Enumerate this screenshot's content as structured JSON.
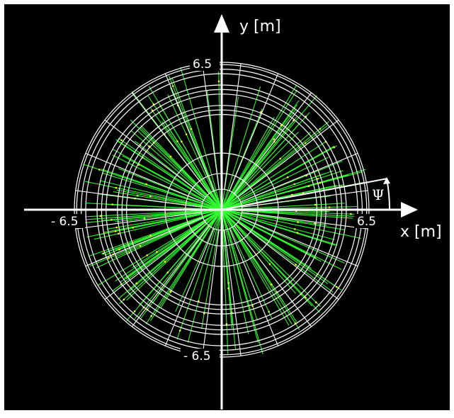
{
  "figure": {
    "x_axis_label": "x [m]",
    "y_axis_label": "y [m]",
    "angle_label": "Ψ",
    "tick_labels": {
      "x_negative": "- 6.5",
      "x_positive": "6.5",
      "y_positive": "6.5",
      "y_negative": "- 6.5"
    },
    "colors": {
      "background": "#000000",
      "frame": "#ffffff",
      "detector": "#ffffff",
      "tracks": "#33ff33",
      "hits": "#ffff33"
    },
    "detector": {
      "outer_radius_m": 6.5,
      "angular_segments": 24,
      "inner_circles_m": [
        0.9,
        1.6,
        2.5
      ],
      "dense_layers_m": [
        4.2,
        4.4,
        4.6,
        5.1,
        5.3,
        5.5,
        6.0,
        6.2,
        6.4
      ]
    },
    "track_count": 160
  }
}
